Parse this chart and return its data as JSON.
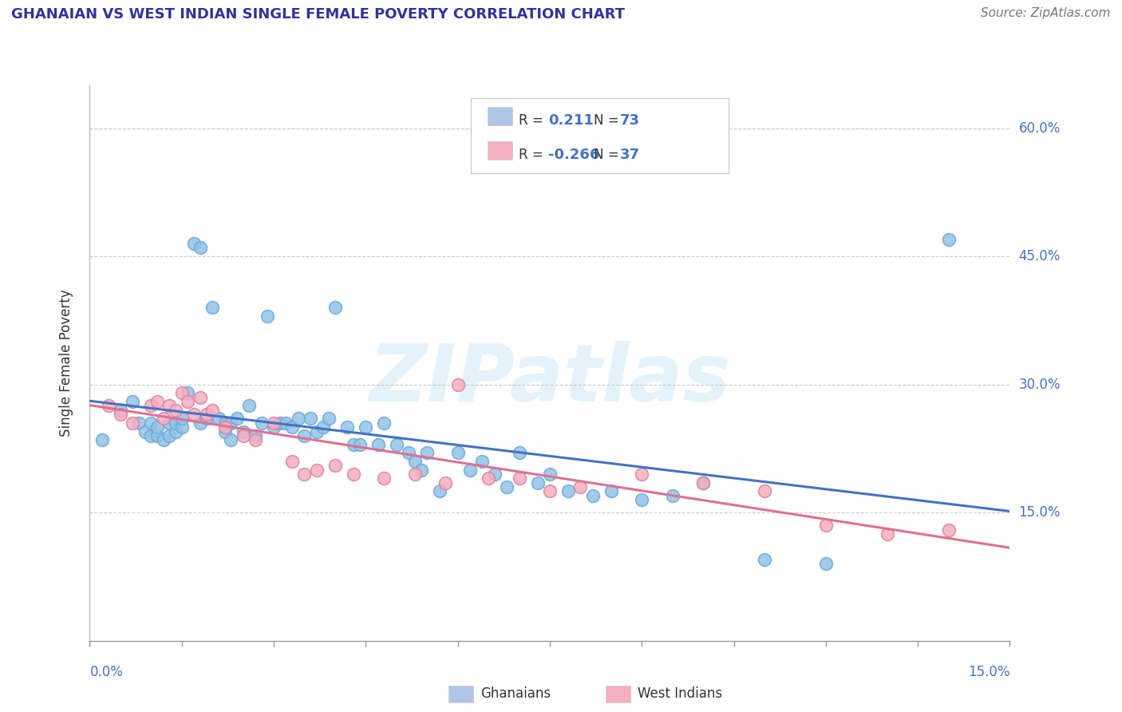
{
  "title": "GHANAIAN VS WEST INDIAN SINGLE FEMALE POVERTY CORRELATION CHART",
  "source": "Source: ZipAtlas.com",
  "xlim": [
    0.0,
    0.15
  ],
  "ylim": [
    0.0,
    0.65
  ],
  "watermark": "ZIPatlas",
  "ylabel": "Single Female Poverty",
  "yticks": [
    0.15,
    0.3,
    0.45,
    0.6
  ],
  "ytick_labels": [
    "15.0%",
    "30.0%",
    "45.0%",
    "60.0%"
  ],
  "xtick_left_label": "0.0%",
  "xtick_right_label": "15.0%",
  "legend_R_entries": [
    {
      "label_prefix": "R =",
      "label_val": "  0.211",
      "label_suffix": "  N = 73",
      "color": "#aec6e8"
    },
    {
      "label_prefix": "R =",
      "label_val": "-0.266",
      "label_suffix": "   N = 37",
      "color": "#f4afc0"
    }
  ],
  "bottom_legend": [
    {
      "label": "Ghanaians",
      "color": "#aec6e8"
    },
    {
      "label": "West Indians",
      "color": "#f4afc0"
    }
  ],
  "series_blue": {
    "name": "Ghanaians",
    "dot_color": "#93c2e8",
    "dot_edge_color": "#6aaad4",
    "trend_color": "#4472c4",
    "x": [
      0.002,
      0.005,
      0.007,
      0.008,
      0.009,
      0.01,
      0.01,
      0.011,
      0.011,
      0.012,
      0.013,
      0.013,
      0.014,
      0.014,
      0.015,
      0.015,
      0.016,
      0.017,
      0.018,
      0.018,
      0.019,
      0.02,
      0.021,
      0.022,
      0.022,
      0.023,
      0.023,
      0.024,
      0.025,
      0.026,
      0.027,
      0.028,
      0.029,
      0.03,
      0.031,
      0.032,
      0.033,
      0.034,
      0.035,
      0.036,
      0.037,
      0.038,
      0.039,
      0.04,
      0.042,
      0.043,
      0.044,
      0.045,
      0.047,
      0.048,
      0.05,
      0.052,
      0.053,
      0.054,
      0.055,
      0.057,
      0.06,
      0.062,
      0.064,
      0.066,
      0.068,
      0.07,
      0.073,
      0.075,
      0.078,
      0.082,
      0.085,
      0.09,
      0.095,
      0.1,
      0.11,
      0.12,
      0.14
    ],
    "y": [
      0.235,
      0.27,
      0.28,
      0.255,
      0.245,
      0.24,
      0.255,
      0.24,
      0.25,
      0.235,
      0.24,
      0.255,
      0.245,
      0.255,
      0.25,
      0.26,
      0.29,
      0.465,
      0.46,
      0.255,
      0.26,
      0.39,
      0.26,
      0.245,
      0.255,
      0.235,
      0.255,
      0.26,
      0.245,
      0.275,
      0.24,
      0.255,
      0.38,
      0.25,
      0.255,
      0.255,
      0.25,
      0.26,
      0.24,
      0.26,
      0.245,
      0.25,
      0.26,
      0.39,
      0.25,
      0.23,
      0.23,
      0.25,
      0.23,
      0.255,
      0.23,
      0.22,
      0.21,
      0.2,
      0.22,
      0.175,
      0.22,
      0.2,
      0.21,
      0.195,
      0.18,
      0.22,
      0.185,
      0.195,
      0.175,
      0.17,
      0.175,
      0.165,
      0.17,
      0.185,
      0.095,
      0.09,
      0.47
    ]
  },
  "series_pink": {
    "name": "West Indians",
    "dot_color": "#f4afc0",
    "dot_edge_color": "#e080a0",
    "trend_color": "#e07090",
    "x": [
      0.003,
      0.005,
      0.007,
      0.01,
      0.011,
      0.012,
      0.013,
      0.014,
      0.015,
      0.016,
      0.017,
      0.018,
      0.019,
      0.02,
      0.022,
      0.025,
      0.027,
      0.03,
      0.033,
      0.035,
      0.037,
      0.04,
      0.043,
      0.048,
      0.053,
      0.058,
      0.06,
      0.065,
      0.07,
      0.075,
      0.08,
      0.09,
      0.1,
      0.11,
      0.12,
      0.13,
      0.14
    ],
    "y": [
      0.275,
      0.265,
      0.255,
      0.275,
      0.28,
      0.26,
      0.275,
      0.27,
      0.29,
      0.28,
      0.265,
      0.285,
      0.265,
      0.27,
      0.25,
      0.24,
      0.235,
      0.255,
      0.21,
      0.195,
      0.2,
      0.205,
      0.195,
      0.19,
      0.195,
      0.185,
      0.3,
      0.19,
      0.19,
      0.175,
      0.18,
      0.195,
      0.185,
      0.175,
      0.135,
      0.125,
      0.13
    ]
  },
  "background_color": "#ffffff",
  "grid_color": "#cccccc",
  "title_color": "#333399",
  "axis_label_color": "#4472c4",
  "source_color": "#777777"
}
